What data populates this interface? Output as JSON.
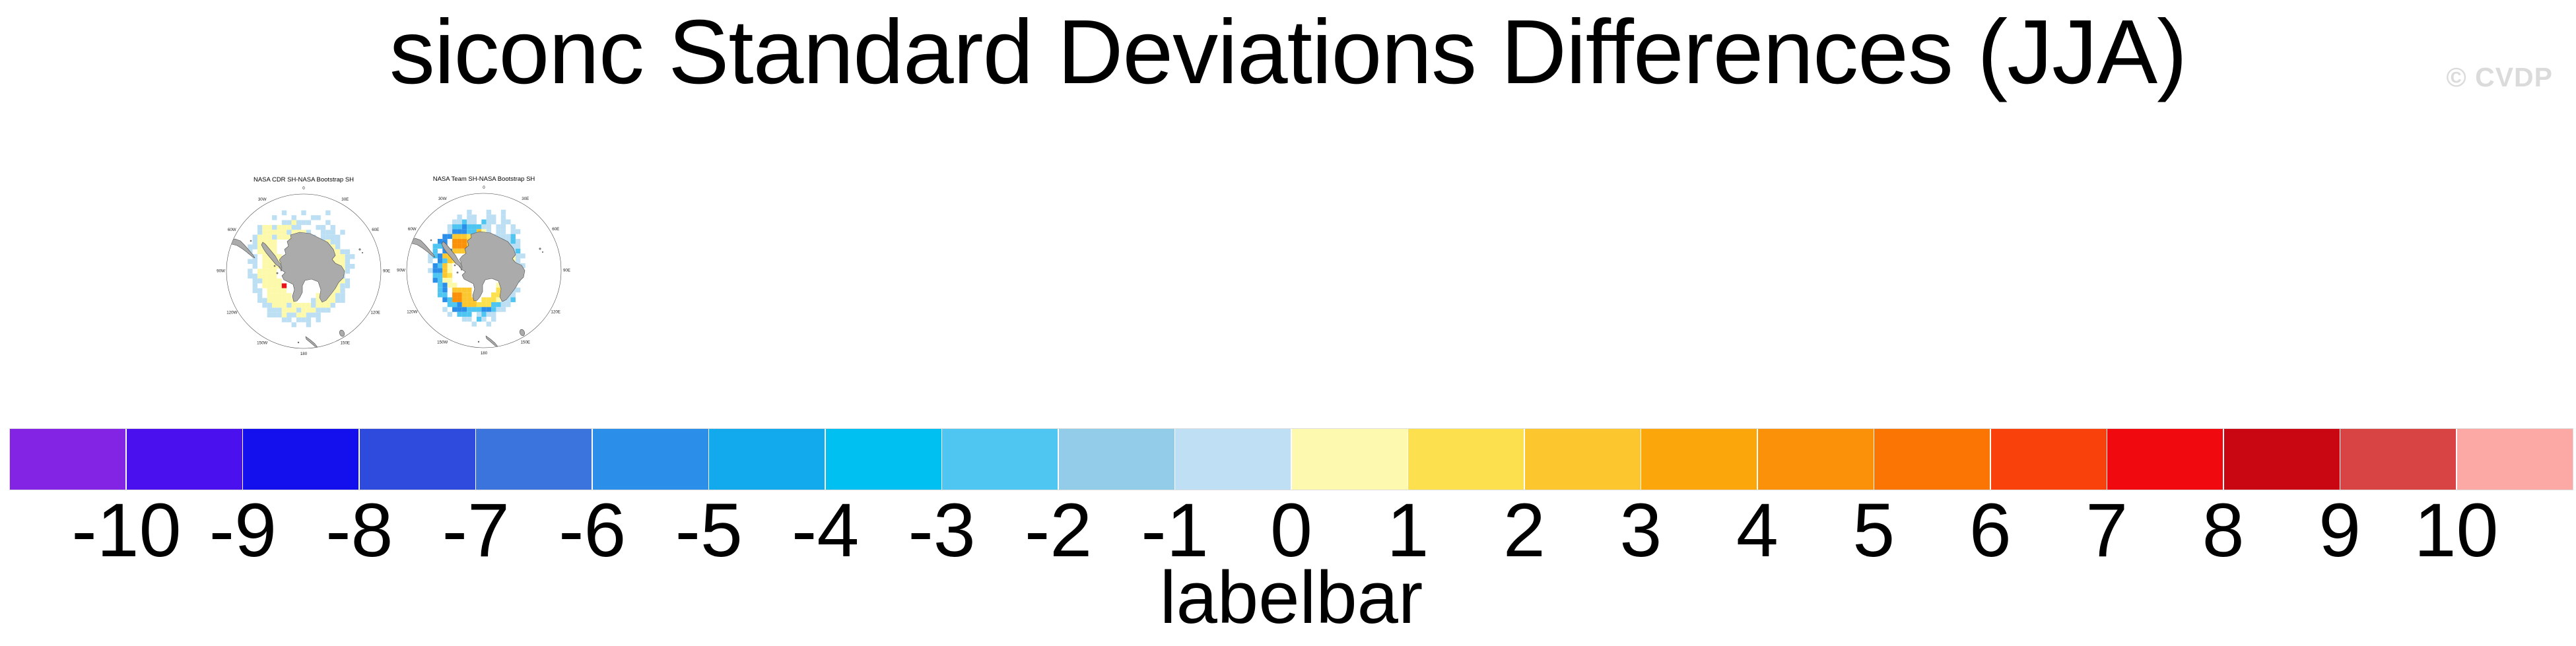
{
  "title": "siconc Standard Deviations Differences (JJA)",
  "watermark": "© CVDP",
  "maps": [
    {
      "title": "NASA CDR SH-NASA Bootstrap SH",
      "grid": [
        "...........................",
        ".........b...b....b........",
        ".......b...b...bb..........",
        ".........bbybbb...b........",
        "....byybyyybb...bb.b.......",
        "....byyyyybyyyb..bbb.b.....",
        "...byyybyyyyyybb.bbbb......",
        "...byyyy.........bybb......",
        "..bbyyyy.........bbyb......",
        "..b.yyyy..........yyybb....",
        "...b.yyyy.........yyyybb...",
        "..bb.yyyy..........yyyb....",
        "...b.yyyy..........yyybb...",
        "..b.yyyy...........yyyb....",
        "..bbyyyy..........yyyb.....",
        "...bbyyyy.........yyyyb....",
        "...b.yyyyR........yyybb....",
        "...bb.yyyy.......yyyyb.....",
        "....b.yyyyy.....yyyybb.....",
        "....bbyyyyyy...byyyybb.....",
        ".....bbyyybyyyybyyyb.......",
        "......bbbyyybyyybbb........",
        "......bbbybbyybbb..........",
        ".........bb.bbb.b..........",
        "...........b..b............",
        "...........................",
        "..........................."
      ]
    },
    {
      "title": "NASA Team SH-NASA Bootstrap SH",
      "grid": [
        "...........................",
        "..........p...p..p.........",
        "........p.pp..pp.p.........",
        ".......pplpp.lpp.pp........",
        "......plldlllpp.pp.p.......",
        "......pdddllgyp.pp.pp......",
        ".....ddgggYYYyyppppl.......",
        "....dd.OOOggYYYyppplp......",
        "...lld.OOOgggyyyppppp......",
        "...l.ddgggY....yYyppl......",
        "..pldgg..........yyypp.....",
        "..p.dlgY.........Yyyp......",
        "...dlgy..........yygpp.....",
        "..pddgy..........Yygp......",
        "...llgY..........yyyp......",
        "...dlyy..........Yypp......",
        "....ldyy........yyyp.......",
        "....ld.gggg.....YYypp......",
        "....ll.OOgg....YYypp.......",
        ".....dlOOggg.YYYyppl.......",
        "......lldgggYYYllpp........",
        ".....p.dddlllddlpp.........",
        "......p.lll.plpp...........",
        ".........pp.lp.p...........",
        "...........p..p............",
        "...........................",
        "..........................."
      ]
    }
  ],
  "map_ticks": [
    {
      "angle": 0,
      "label": "0"
    },
    {
      "angle": 30,
      "label": "30E"
    },
    {
      "angle": 60,
      "label": "60E"
    },
    {
      "angle": 90,
      "label": "90E"
    },
    {
      "angle": 120,
      "label": "120E"
    },
    {
      "angle": 150,
      "label": "150E"
    },
    {
      "angle": 180,
      "label": "180"
    },
    {
      "angle": 210,
      "label": "150W"
    },
    {
      "angle": 240,
      "label": "120W"
    },
    {
      "angle": 270,
      "label": "90W"
    },
    {
      "angle": 300,
      "label": "60W"
    },
    {
      "angle": 330,
      "label": "30W"
    }
  ],
  "cell_colors": {
    "b": "#BCDFF3",
    "y": "#FDF9AA",
    "R": "#EA1217",
    "p": "#BCDFF3",
    "s": "#93CCE9",
    "l": "#4FC5F1",
    "c": "#00C0F2",
    "d": "#2B8EE9",
    "Y": "#FDE04E",
    "g": "#FCC72E",
    "o": "#FBA60B",
    "O": "#FB9108"
  },
  "land_color": "#ABABAB",
  "land_outline": "#4E4E4E",
  "labelbar": {
    "title": "labelbar",
    "tick_labels": [
      "-10",
      "-9",
      "-8",
      "-7",
      "-6",
      "-5",
      "-4",
      "-3",
      "-2",
      "-1",
      "0",
      "1",
      "2",
      "3",
      "4",
      "5",
      "6",
      "7",
      "8",
      "9",
      "10"
    ],
    "colors": [
      "#8324E4",
      "#4A10EE",
      "#1310ED",
      "#2E4BDE",
      "#3A74DC",
      "#2B8EE9",
      "#12AAEC",
      "#00C0F2",
      "#4FC5F1",
      "#93CCE9",
      "#BFE0F4",
      "#FDFAAF",
      "#FDE04E",
      "#FCC72E",
      "#FBA60B",
      "#FB9108",
      "#FA7504",
      "#F9410C",
      "#F00A10",
      "#C90712",
      "#D84443",
      "#FCA9A6"
    ]
  },
  "chart_data": {
    "type": "heatmap",
    "title": "siconc Standard Deviations Differences (JJA)",
    "panels": [
      {
        "title": "NASA CDR SH-NASA Bootstrap SH",
        "projection": "south-polar-stereographic",
        "summary": "Mostly weak differences: pale-yellow (0 to 1) ring near the Antarctic coast, pale-blue (-1 to 0) cells on the outer sea-ice edge, one red cell (~7 to 8) in the Amundsen Sea sector."
      },
      {
        "title": "NASA Team SH-NASA Bootstrap SH",
        "projection": "south-polar-stereographic",
        "summary": "Stronger differences: orange/golden patch (3 to 6) in the Weddell sector and south of the continent, yellow ring near the coast, medium-to-deep blue band (-6 to -2) around the outer ice edge."
      }
    ],
    "colorbar": {
      "label": "labelbar",
      "levels": [
        -10,
        -9,
        -8,
        -7,
        -6,
        -5,
        -4,
        -3,
        -2,
        -1,
        0,
        1,
        2,
        3,
        4,
        5,
        6,
        7,
        8,
        9,
        10
      ],
      "n_colors": 22,
      "orientation": "horizontal"
    },
    "legend_position": "bottom",
    "season": "JJA",
    "variable": "siconc"
  }
}
